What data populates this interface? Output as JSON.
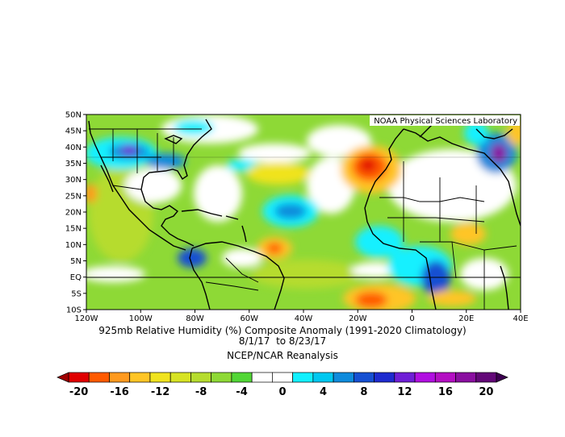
{
  "credit": "NOAA Physical Sciences Laboratory",
  "title_line1": "925mb Relative Humidity (%) Composite Anomaly (1991-2020 Climatology)",
  "title_line2": "8/1/17  to 8/23/17",
  "source": "NCEP/NCAR Reanalysis",
  "map": {
    "lat_labels": [
      "50N",
      "45N",
      "40N",
      "35N",
      "30N",
      "25N",
      "20N",
      "15N",
      "10N",
      "5N",
      "EQ",
      "5S",
      "10S"
    ],
    "lon_labels": [
      "120W",
      "100W",
      "80W",
      "60W",
      "40W",
      "20W",
      "0",
      "20E",
      "40E"
    ]
  },
  "colorbar": {
    "labels": [
      "-20",
      "-16",
      "-12",
      "-8",
      "-4",
      "0",
      "4",
      "8",
      "12",
      "16",
      "20"
    ],
    "colors": [
      "#e00000",
      "#ff5a00",
      "#ff9a1f",
      "#ffc526",
      "#f0e31f",
      "#d7e324",
      "#b6dc2f",
      "#8ed936",
      "#52d636",
      "#ffffff",
      "#ffffff",
      "#12f0ff",
      "#00c8f0",
      "#0f8bdc",
      "#1650d2",
      "#1e2bcf",
      "#6f1fd6",
      "#b10fe1",
      "#b40fc3",
      "#8a0fa0",
      "#630878"
    ]
  },
  "icons": [
    "arrow-left-icon",
    "arrow-right-icon"
  ]
}
